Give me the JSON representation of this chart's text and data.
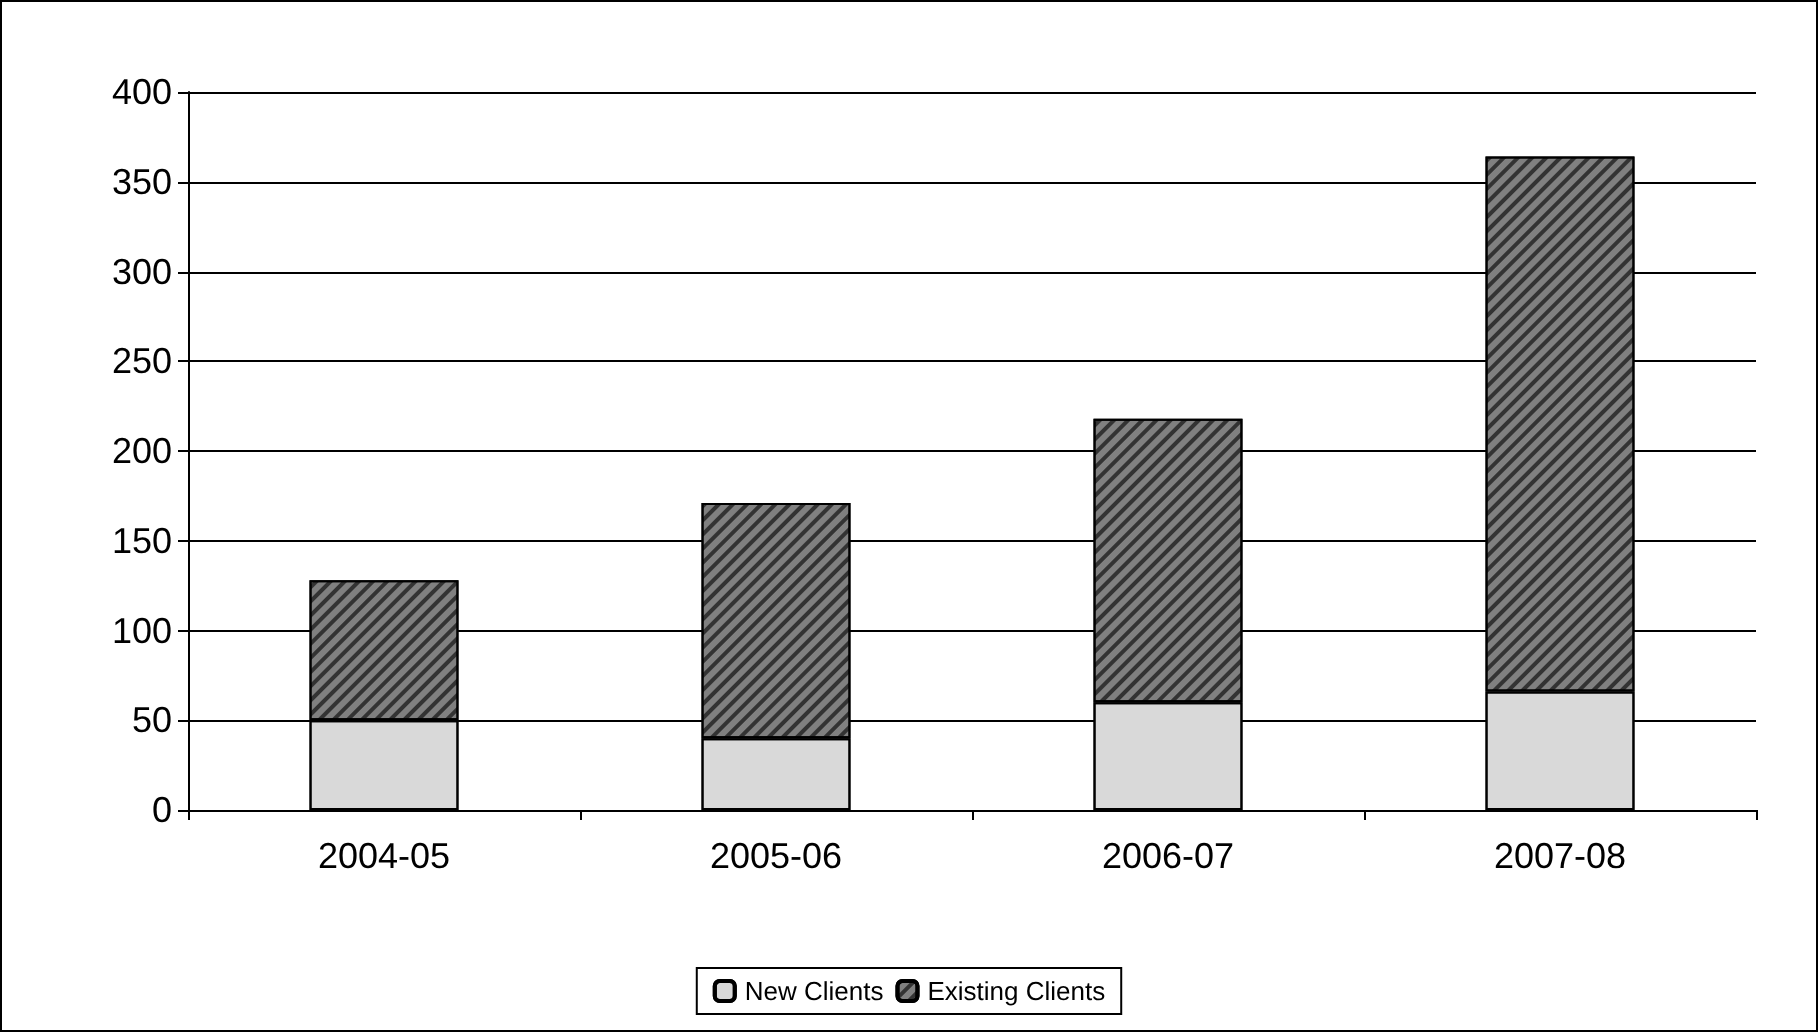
{
  "chart_data": {
    "type": "bar",
    "stacked": true,
    "categories": [
      "2004-05",
      "2005-06",
      "2006-07",
      "2007-08"
    ],
    "series": [
      {
        "name": "New Clients",
        "color": "#d9d9d9",
        "values": [
          50,
          40,
          60,
          66
        ]
      },
      {
        "name": "Existing Clients",
        "color": "#808080",
        "values": [
          78,
          131,
          158,
          298
        ]
      }
    ],
    "ylim": [
      0,
      400
    ],
    "yticks": [
      0,
      50,
      100,
      150,
      200,
      250,
      300,
      350,
      400
    ],
    "grid": "y",
    "legend": "bottom"
  }
}
